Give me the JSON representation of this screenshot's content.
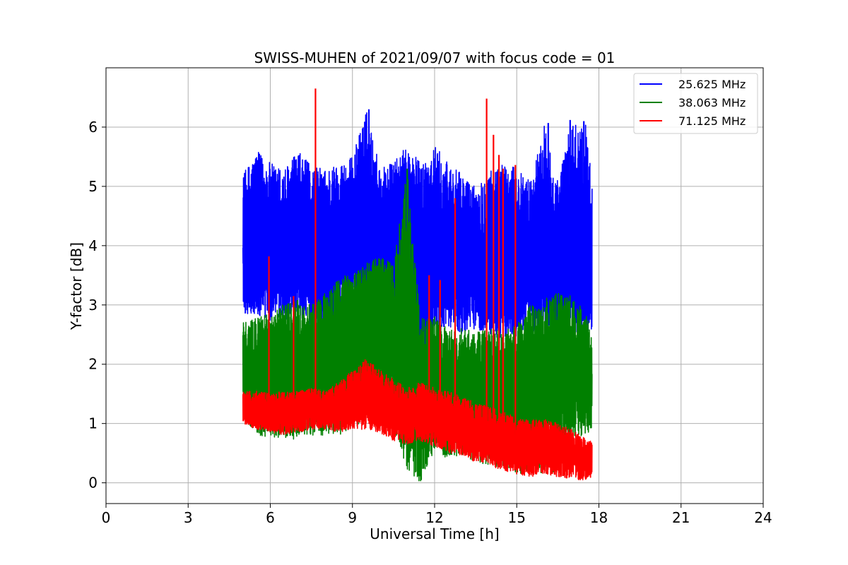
{
  "chart_data": {
    "type": "line",
    "title": "SWISS-MUHEN of 2021/09/07 with focus code = 01",
    "xlabel": "Universal Time [h]",
    "ylabel": "Y-factor [dB]",
    "xlim": [
      0,
      24
    ],
    "ylim": [
      -0.35,
      7.0
    ],
    "xticks": [
      0,
      3,
      6,
      9,
      12,
      15,
      18,
      21,
      24
    ],
    "yticks": [
      0,
      1,
      2,
      3,
      4,
      5,
      6
    ],
    "grid": true,
    "legend_position": "top-right",
    "series": [
      {
        "name": "25.625 MHz",
        "color": "#0000ff",
        "x": [
          5.0,
          5.5,
          6.0,
          6.5,
          7.0,
          7.5,
          8.0,
          8.5,
          9.0,
          9.5,
          10.0,
          10.5,
          11.0,
          11.5,
          12.0,
          12.5,
          13.0,
          13.5,
          14.0,
          14.5,
          15.0,
          15.5,
          16.0,
          16.5,
          17.0,
          17.5,
          17.75
        ],
        "y_low": [
          2.85,
          2.8,
          2.7,
          2.75,
          2.8,
          2.65,
          2.6,
          2.8,
          2.9,
          2.95,
          2.85,
          2.8,
          1.8,
          1.3,
          2.6,
          2.65,
          2.5,
          2.6,
          2.5,
          2.4,
          2.45,
          2.55,
          2.55,
          2.5,
          2.55,
          2.45,
          2.6
        ],
        "y_high": [
          5.2,
          5.6,
          5.4,
          5.3,
          5.6,
          5.35,
          5.3,
          5.4,
          5.5,
          6.3,
          5.35,
          5.4,
          5.7,
          5.4,
          5.7,
          5.4,
          5.2,
          5.0,
          5.3,
          5.4,
          5.3,
          5.1,
          6.05,
          5.1,
          6.1,
          6.1,
          5.2
        ],
        "y_mean": [
          3.8,
          3.9,
          3.9,
          3.8,
          3.8,
          3.7,
          3.8,
          3.9,
          4.0,
          4.1,
          4.0,
          4.0,
          3.9,
          3.7,
          3.8,
          3.9,
          3.8,
          3.7,
          3.7,
          3.6,
          3.7,
          3.7,
          3.8,
          3.7,
          3.7,
          3.6,
          3.6
        ]
      },
      {
        "name": "38.063 MHz",
        "color": "#008000",
        "x": [
          5.0,
          5.5,
          6.0,
          6.5,
          7.0,
          7.5,
          8.0,
          8.5,
          9.0,
          9.5,
          10.0,
          10.5,
          11.0,
          11.5,
          12.0,
          12.5,
          13.0,
          13.5,
          14.0,
          14.5,
          15.0,
          15.5,
          16.0,
          16.5,
          17.0,
          17.5,
          17.75
        ],
        "y_low": [
          1.1,
          0.8,
          0.75,
          0.7,
          0.75,
          0.8,
          0.8,
          0.8,
          0.95,
          1.05,
          1.0,
          0.95,
          0.2,
          0.0,
          0.55,
          0.4,
          0.45,
          0.35,
          0.3,
          0.25,
          0.15,
          0.15,
          0.15,
          0.2,
          0.75,
          0.8,
          0.9
        ],
        "y_high": [
          2.7,
          2.8,
          2.85,
          3.05,
          3.1,
          3.0,
          3.2,
          3.45,
          3.55,
          3.7,
          3.85,
          3.7,
          5.3,
          2.8,
          2.8,
          2.6,
          2.6,
          2.55,
          2.6,
          2.55,
          2.7,
          3.0,
          3.1,
          3.2,
          3.2,
          2.9,
          2.5
        ],
        "y_mean": [
          1.9,
          1.9,
          1.9,
          1.95,
          2.0,
          2.0,
          2.2,
          2.5,
          2.6,
          2.7,
          2.7,
          2.6,
          2.0,
          1.2,
          1.5,
          1.4,
          1.5,
          1.6,
          1.6,
          1.5,
          1.6,
          1.8,
          1.9,
          1.9,
          1.9,
          1.7,
          1.6
        ]
      },
      {
        "name": "71.125 MHz",
        "color": "#ff0000",
        "x": [
          5.0,
          5.5,
          6.0,
          6.5,
          7.0,
          7.5,
          8.0,
          8.5,
          9.0,
          9.5,
          10.0,
          10.5,
          11.0,
          11.5,
          12.0,
          12.5,
          13.0,
          13.5,
          14.0,
          14.5,
          15.0,
          15.5,
          16.0,
          16.5,
          17.0,
          17.5,
          17.75
        ],
        "y_low": [
          1.0,
          0.9,
          0.85,
          0.8,
          0.85,
          0.9,
          0.9,
          0.85,
          0.9,
          0.9,
          0.85,
          0.7,
          0.65,
          0.7,
          0.6,
          0.5,
          0.45,
          0.35,
          0.3,
          0.2,
          0.15,
          0.1,
          0.15,
          0.1,
          0.05,
          0.05,
          0.1
        ],
        "y_high": [
          1.55,
          1.55,
          1.5,
          1.55,
          1.55,
          1.6,
          1.55,
          1.7,
          1.9,
          2.1,
          1.9,
          1.75,
          1.6,
          1.7,
          1.6,
          1.55,
          1.45,
          1.35,
          1.3,
          1.2,
          1.1,
          1.05,
          1.1,
          1.0,
          0.9,
          0.75,
          0.7
        ],
        "y_mean": [
          1.3,
          1.2,
          1.2,
          1.15,
          1.15,
          1.2,
          1.2,
          1.2,
          1.3,
          1.4,
          1.3,
          1.2,
          1.1,
          1.1,
          1.1,
          1.0,
          0.9,
          0.8,
          0.7,
          0.65,
          0.6,
          0.6,
          0.6,
          0.55,
          0.5,
          0.4,
          0.4
        ]
      }
    ],
    "spikes": [
      {
        "series": "71.125 MHz",
        "x": 5.95,
        "y": 3.82
      },
      {
        "series": "71.125 MHz",
        "x": 6.85,
        "y": 3.15
      },
      {
        "series": "71.125 MHz",
        "x": 7.65,
        "y": 6.65
      },
      {
        "series": "71.125 MHz",
        "x": 11.8,
        "y": 3.5
      },
      {
        "series": "71.125 MHz",
        "x": 12.2,
        "y": 3.42
      },
      {
        "series": "71.125 MHz",
        "x": 12.75,
        "y": 4.8
      },
      {
        "series": "71.125 MHz",
        "x": 13.9,
        "y": 6.48
      },
      {
        "series": "71.125 MHz",
        "x": 14.15,
        "y": 5.87
      },
      {
        "series": "71.125 MHz",
        "x": 14.35,
        "y": 5.53
      },
      {
        "series": "71.125 MHz",
        "x": 14.5,
        "y": 5.3
      },
      {
        "series": "71.125 MHz",
        "x": 14.95,
        "y": 5.36
      },
      {
        "series": "25.625 MHz",
        "x": 9.6,
        "y": 6.3
      },
      {
        "series": "25.625 MHz",
        "x": 16.15,
        "y": 6.07
      },
      {
        "series": "25.625 MHz",
        "x": 16.95,
        "y": 6.12
      },
      {
        "series": "25.625 MHz",
        "x": 17.45,
        "y": 6.1
      },
      {
        "series": "38.063 MHz",
        "x": 11.0,
        "y": 5.3
      }
    ]
  }
}
